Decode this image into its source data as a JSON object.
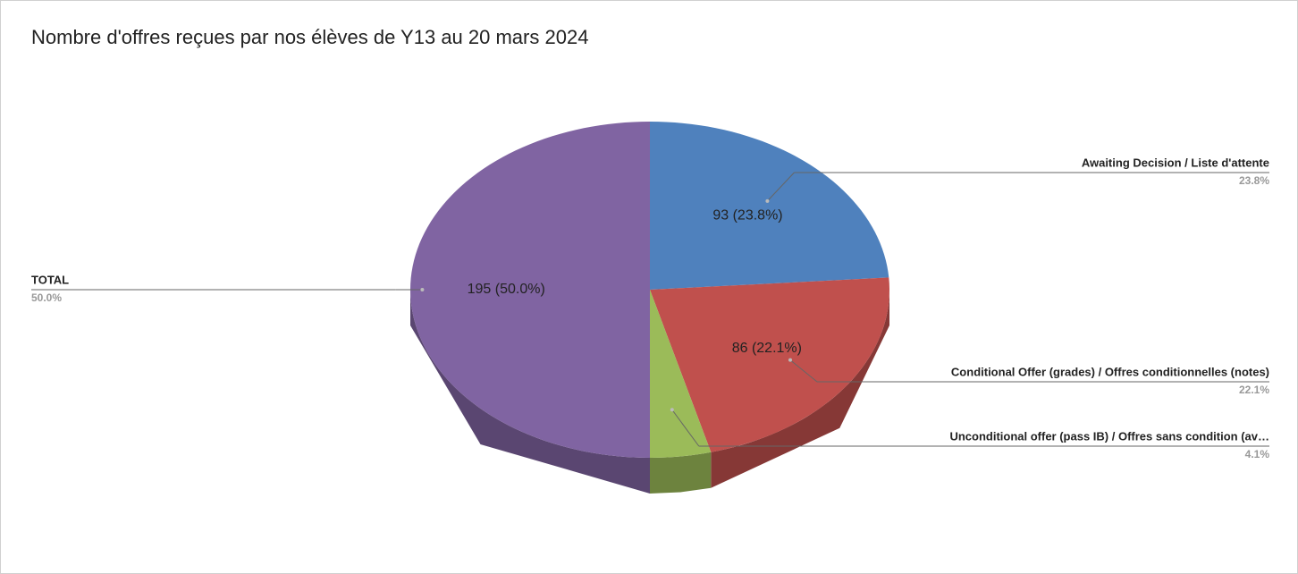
{
  "chart_data": {
    "type": "pie3d",
    "title": "Nombre d'offres reçues par nos élèves de Y13 au 20 mars 2024",
    "categories": [
      "Awaiting Decision / Liste d'attente",
      "Conditional Offer (grades) / Offres conditionnelles (notes)",
      "Unconditional offer (pass IB) / Offres sans condition (av…",
      "TOTAL"
    ],
    "values": [
      93,
      86,
      16,
      195
    ],
    "value_labels": [
      "93 (23.8%)",
      "86 (22.1%)",
      null,
      "195 (50.0%)"
    ],
    "percent_labels": [
      "23.8%",
      "22.1%",
      "4.1%",
      "50.0%"
    ],
    "colors": [
      "#4f81bd",
      "#c0504d",
      "#9bbb59",
      "#8064a2"
    ]
  }
}
